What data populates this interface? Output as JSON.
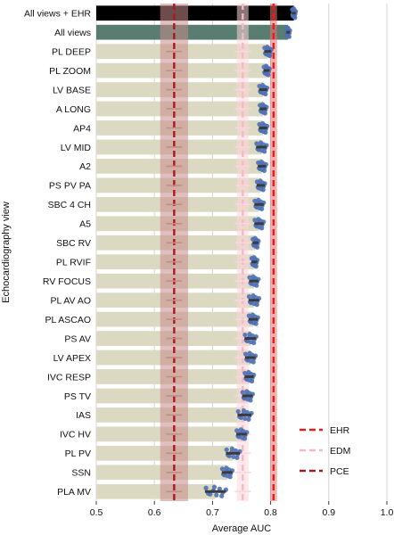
{
  "chart_data": {
    "type": "bar",
    "orientation": "horizontal",
    "xlabel": "Average AUC",
    "ylabel": "Echocardiography view",
    "xlim": [
      0.5,
      1.0
    ],
    "xticks": [
      0.5,
      0.6,
      0.7,
      0.8,
      0.9,
      1.0
    ],
    "tick_labels": [
      "0.5",
      "0.6",
      "0.7",
      "0.8",
      "0.9",
      "1.0"
    ],
    "grid": "vertical",
    "categories": [
      "All views + EHR",
      "All views",
      "PL DEEP",
      "PL ZOOM",
      "LV BASE",
      "A LONG",
      "AP4",
      "LV MID",
      "A2",
      "PS PV PA",
      "SBC 4 CH",
      "A5",
      "SBC RV",
      "PL RVIF",
      "RV FOCUS",
      "PL AV AO",
      "PL ASCAO",
      "PS AV",
      "LV APEX",
      "IVC RESP",
      "PS TV",
      "IAS",
      "IVC HV",
      "PL PV",
      "SSN",
      "PLA MV"
    ],
    "values": [
      0.84,
      0.83,
      0.795,
      0.793,
      0.787,
      0.787,
      0.787,
      0.784,
      0.785,
      0.783,
      0.78,
      0.78,
      0.774,
      0.772,
      0.771,
      0.771,
      0.77,
      0.765,
      0.765,
      0.763,
      0.76,
      0.755,
      0.75,
      0.735,
      0.725,
      0.705
    ],
    "errors": [
      0.003,
      0.003,
      0.006,
      0.005,
      0.007,
      0.006,
      0.007,
      0.009,
      0.007,
      0.007,
      0.008,
      0.008,
      0.005,
      0.005,
      0.008,
      0.009,
      0.008,
      0.01,
      0.009,
      0.008,
      0.009,
      0.012,
      0.009,
      0.012,
      0.009,
      0.018
    ],
    "bar_colors": {
      "All views + EHR": "#000000",
      "All views": "#5a7d72",
      "default": "#dcd9c2"
    },
    "point_color": "#4c6fb5",
    "error_color": "#3a3a3a",
    "reference_lines": [
      {
        "name": "EHR",
        "value": 0.805,
        "band": [
          0.799,
          0.811
        ],
        "color": "#e02020",
        "band_color": "#ef6f6f"
      },
      {
        "name": "EDM",
        "value": 0.752,
        "band": [
          0.742,
          0.762
        ],
        "color": "#f6b8c3",
        "band_color": "#fbd6dc"
      },
      {
        "name": "PCE",
        "value": 0.634,
        "band": [
          0.61,
          0.658
        ],
        "color": "#a31b1b",
        "band_color": "#c98a8a"
      }
    ],
    "legend": {
      "placement": "bottom-right",
      "entries": [
        "EHR",
        "EDM",
        "PCE"
      ]
    }
  }
}
